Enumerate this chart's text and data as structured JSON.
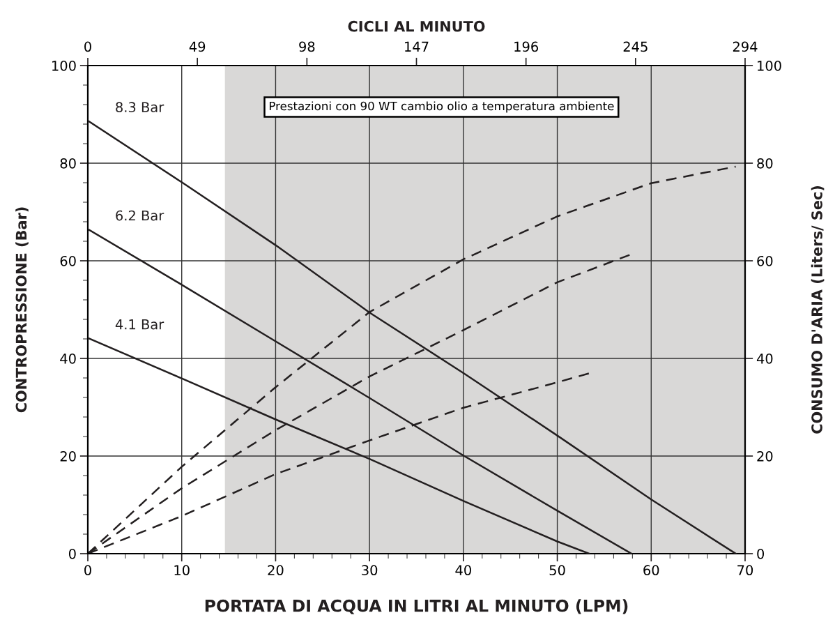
{
  "chart_data": {
    "type": "line",
    "x2label": "CICLI AL MINUTO",
    "xlabel": "PORTATA DI ACQUA IN LITRI AL MINUTO (LPM)",
    "ylabel": "CONTROPRESSIONE (Bar)",
    "y2label": "CONSUMO D'ARIA (Liters/ Sec)",
    "annotations": [
      "Prestazioni con 90 WT cambio olio a temperatura ambiente"
    ],
    "series": [
      {
        "name": "8.3 Bar",
        "color": "#231f20",
        "line_style": "solid",
        "x": [
          0,
          10,
          20,
          30,
          40,
          50,
          60,
          69.0
        ],
        "values": [
          88.7,
          76.1,
          63.2,
          49.4,
          37.0,
          24.2,
          11.1,
          0
        ]
      },
      {
        "name": "6.2 Bar",
        "color": "#231f20",
        "line_style": "solid",
        "x": [
          0,
          10,
          20,
          30,
          40,
          50,
          57.9
        ],
        "values": [
          66.5,
          55.1,
          43.5,
          31.9,
          20.1,
          8.8,
          0
        ]
      },
      {
        "name": "4.1 Bar",
        "color": "#231f20",
        "line_style": "solid",
        "x": [
          0,
          10,
          20,
          30,
          40,
          50,
          53.4
        ],
        "values": [
          44.2,
          35.9,
          27.5,
          19.4,
          10.8,
          2.5,
          0
        ]
      },
      {
        "color": "#231f20",
        "line_style": "dashed",
        "axis": "y2",
        "x": [
          0,
          10,
          20,
          30,
          40,
          50,
          60,
          69.0
        ],
        "values": [
          0,
          17.8,
          34.1,
          49.5,
          60.3,
          69.1,
          75.9,
          79.3
        ]
      },
      {
        "color": "#231f20",
        "line_style": "dashed",
        "axis": "y2",
        "x": [
          0,
          10,
          20,
          30,
          40,
          50,
          58.1
        ],
        "values": [
          0,
          13.4,
          25.3,
          36.3,
          45.8,
          55.6,
          61.5
        ]
      },
      {
        "color": "#231f20",
        "line_style": "dashed",
        "axis": "y2",
        "x": [
          0,
          10,
          20,
          30,
          40,
          50,
          53.5
        ],
        "values": [
          0,
          7.7,
          16.3,
          23.2,
          29.9,
          35.1,
          37.0
        ]
      }
    ],
    "bands": [
      {
        "axis": "x",
        "from": 14.6,
        "to": 70,
        "color": "#d9d8d7"
      }
    ],
    "xlim": [
      0,
      70
    ],
    "xticks": [
      0,
      10,
      20,
      30,
      40,
      50,
      60,
      70
    ],
    "x2lim": [
      0,
      294
    ],
    "x2ticks": [
      0,
      49,
      98,
      147,
      196,
      245,
      294
    ],
    "ylim": [
      0,
      100
    ],
    "yticks": [
      0,
      20,
      40,
      60,
      80,
      100
    ],
    "y2lim": [
      0,
      100
    ],
    "y2ticks": [
      0,
      20,
      40,
      60,
      80,
      100
    ],
    "grid": true,
    "legend": false,
    "marker": "none"
  }
}
